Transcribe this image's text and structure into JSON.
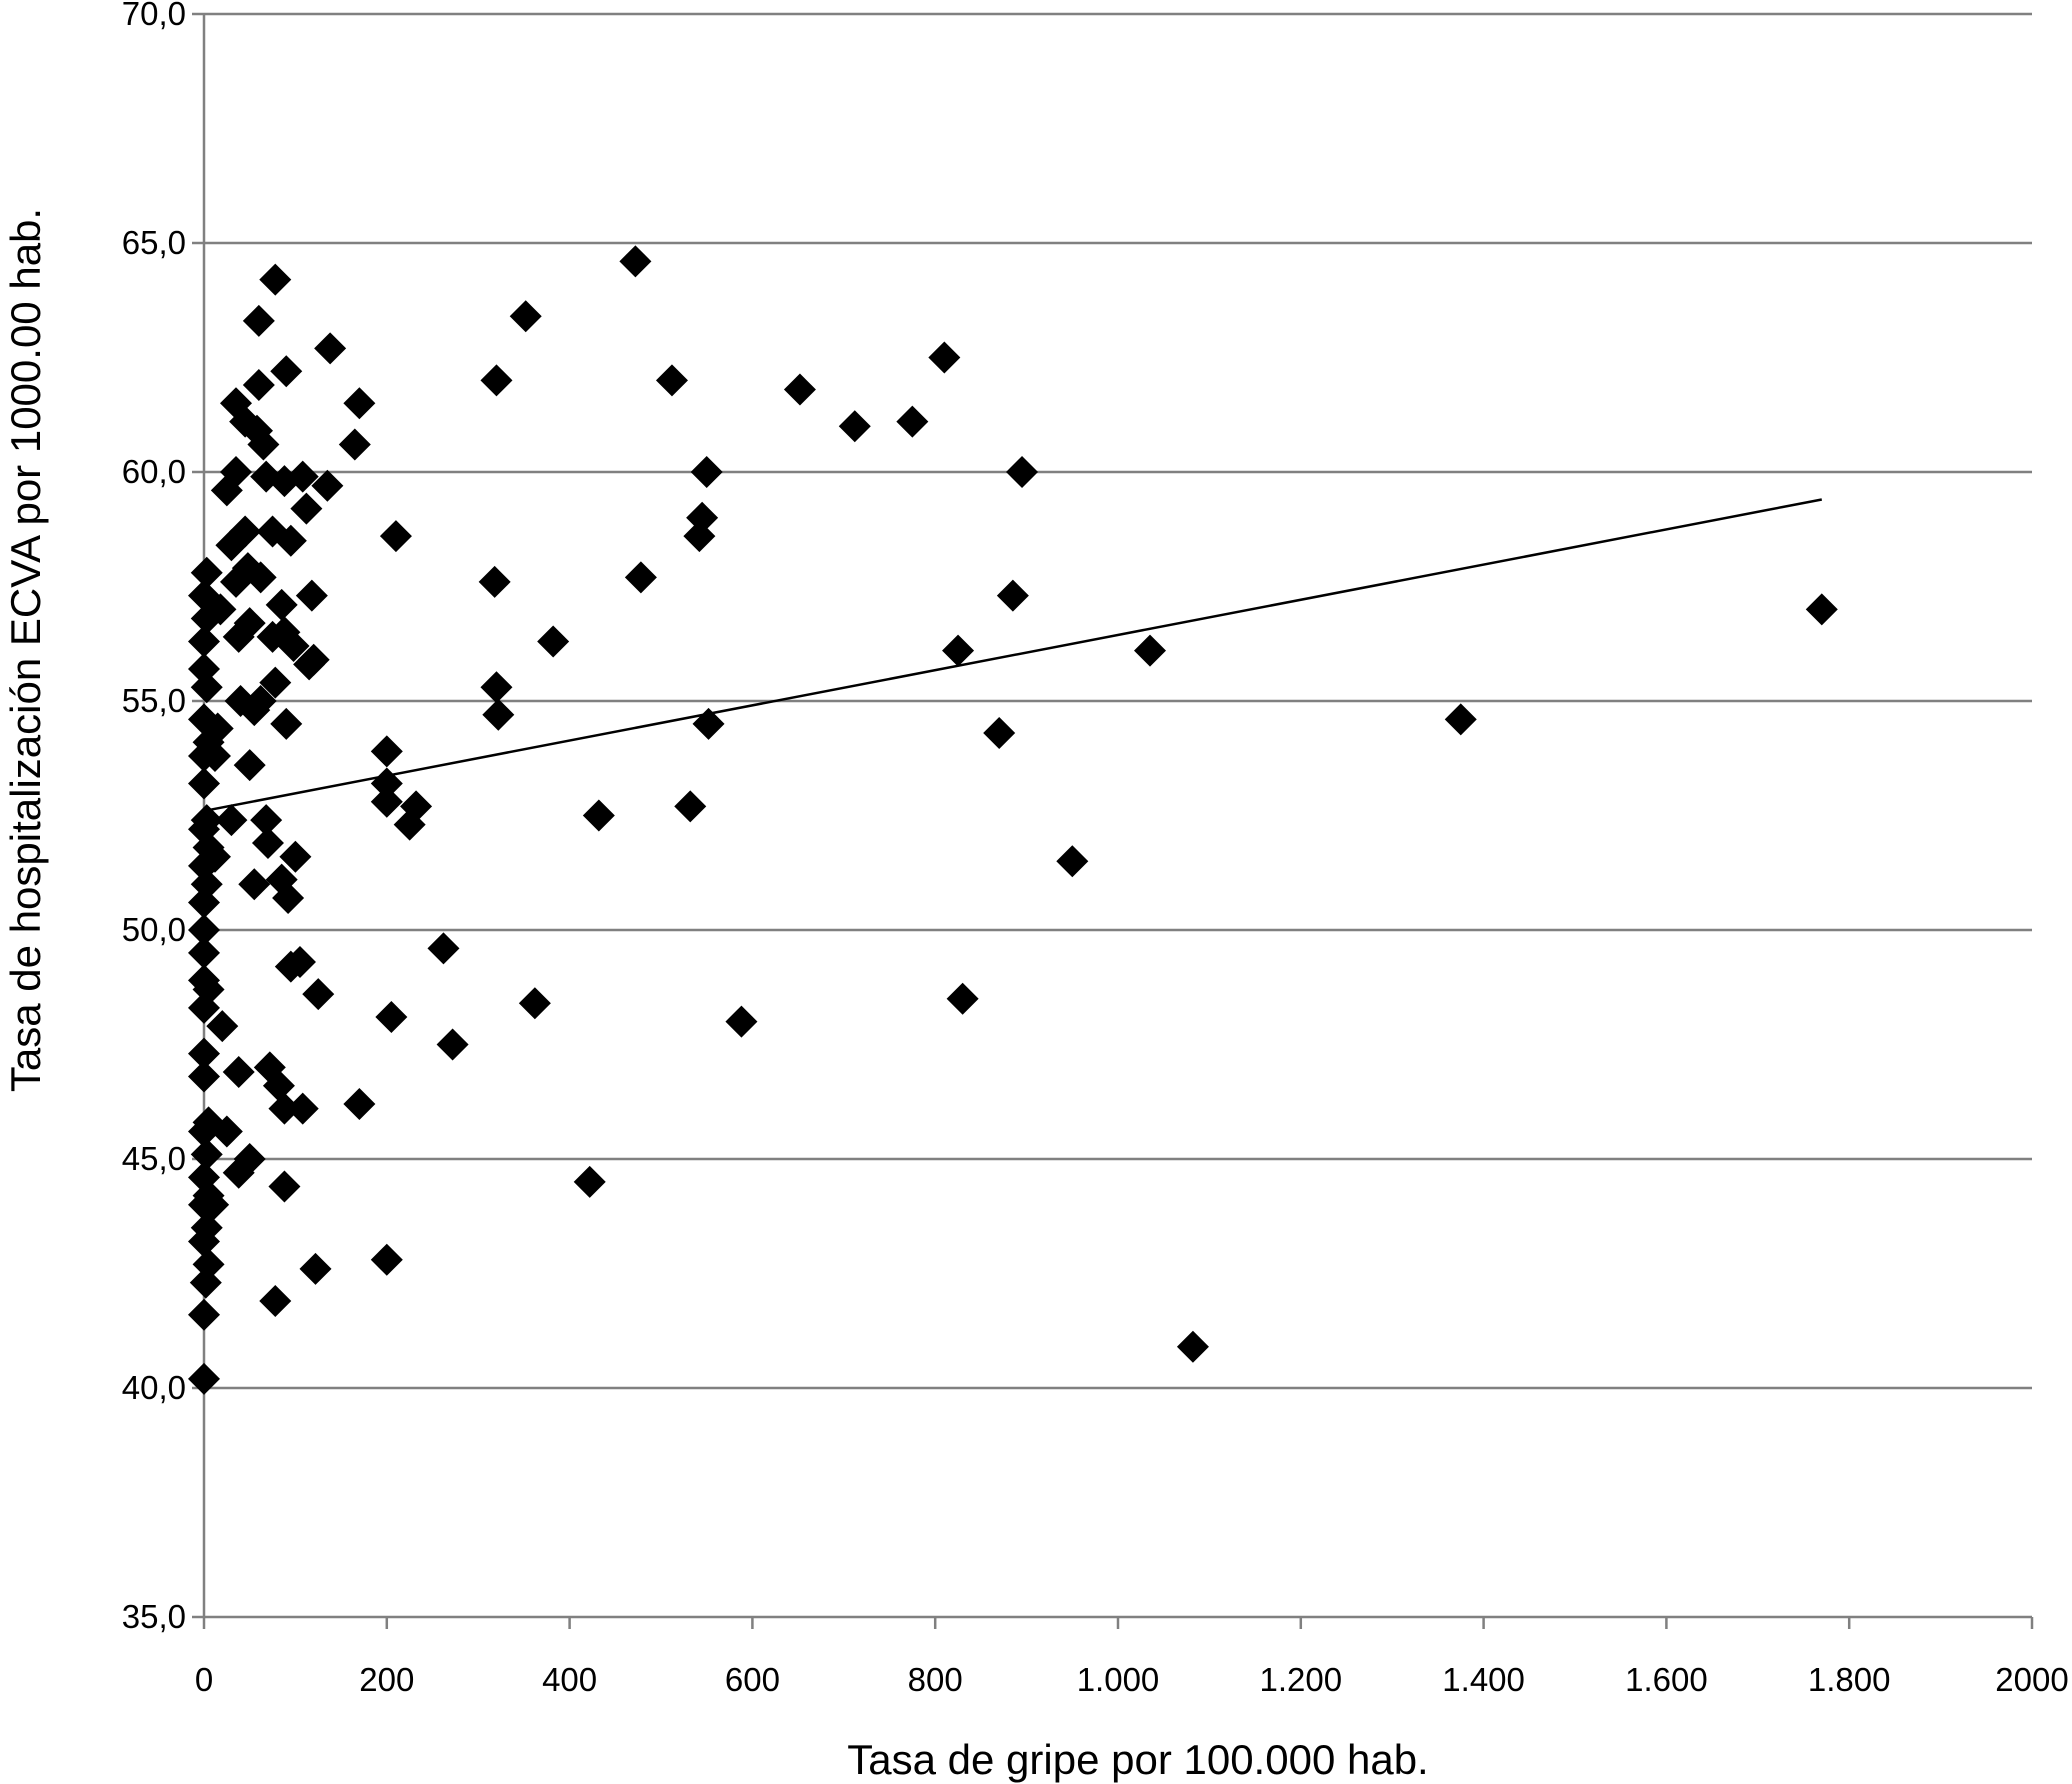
{
  "chart_data": {
    "type": "scatter",
    "title": "",
    "xlabel": "Tasa de gripe por 100.000 hab.",
    "ylabel": "Tasa de hospitalización ECVA por 1000.00 hab.",
    "xlim": [
      0,
      2000
    ],
    "ylim": [
      35,
      70
    ],
    "x_ticks": [
      0,
      200,
      400,
      600,
      800,
      1000,
      1200,
      1400,
      1600,
      1800,
      2000
    ],
    "x_tick_labels": [
      "0",
      "200",
      "400",
      "600",
      "800",
      "1.000",
      "1.200",
      "1.400",
      "1.600",
      "1.800",
      "2000"
    ],
    "y_ticks": [
      35,
      40,
      45,
      50,
      55,
      60,
      65,
      70
    ],
    "y_tick_labels": [
      "35,0",
      "40,0",
      "45,0",
      "50,0",
      "55,0",
      "60,0",
      "65,0",
      "70,0"
    ],
    "grid": "horizontal",
    "marker": "diamond",
    "marker_color": "#000000",
    "trendline": {
      "x": [
        0,
        1770
      ],
      "y": [
        52.6,
        59.4
      ]
    },
    "points": [
      {
        "x": 0,
        "y": 40.2
      },
      {
        "x": 0,
        "y": 41.6
      },
      {
        "x": 2,
        "y": 42.3
      },
      {
        "x": 5,
        "y": 42.7
      },
      {
        "x": 0,
        "y": 43.2
      },
      {
        "x": 3,
        "y": 43.5
      },
      {
        "x": 0,
        "y": 44.0
      },
      {
        "x": 5,
        "y": 44.2
      },
      {
        "x": 0,
        "y": 44.6
      },
      {
        "x": 3,
        "y": 45.1
      },
      {
        "x": 0,
        "y": 45.6
      },
      {
        "x": 5,
        "y": 45.8
      },
      {
        "x": 0,
        "y": 46.8
      },
      {
        "x": 0,
        "y": 47.3
      },
      {
        "x": 0,
        "y": 48.3
      },
      {
        "x": 5,
        "y": 48.7
      },
      {
        "x": 0,
        "y": 48.9
      },
      {
        "x": 0,
        "y": 49.5
      },
      {
        "x": 0,
        "y": 50.0
      },
      {
        "x": 0,
        "y": 50.6
      },
      {
        "x": 3,
        "y": 51.0
      },
      {
        "x": 0,
        "y": 51.4
      },
      {
        "x": 5,
        "y": 51.8
      },
      {
        "x": 0,
        "y": 52.2
      },
      {
        "x": 3,
        "y": 52.4
      },
      {
        "x": 0,
        "y": 53.2
      },
      {
        "x": 0,
        "y": 53.8
      },
      {
        "x": 5,
        "y": 54.1
      },
      {
        "x": 0,
        "y": 54.6
      },
      {
        "x": 3,
        "y": 55.3
      },
      {
        "x": 0,
        "y": 55.7
      },
      {
        "x": 0,
        "y": 56.3
      },
      {
        "x": 3,
        "y": 56.8
      },
      {
        "x": 0,
        "y": 57.3
      },
      {
        "x": 3,
        "y": 57.8
      },
      {
        "x": 10,
        "y": 44.0
      },
      {
        "x": 12,
        "y": 51.6
      },
      {
        "x": 12,
        "y": 53.8
      },
      {
        "x": 15,
        "y": 54.4
      },
      {
        "x": 18,
        "y": 57.0
      },
      {
        "x": 20,
        "y": 47.9
      },
      {
        "x": 25,
        "y": 45.6
      },
      {
        "x": 30,
        "y": 52.4
      },
      {
        "x": 25,
        "y": 59.6
      },
      {
        "x": 30,
        "y": 58.4
      },
      {
        "x": 35,
        "y": 61.5
      },
      {
        "x": 35,
        "y": 60.0
      },
      {
        "x": 35,
        "y": 57.6
      },
      {
        "x": 38,
        "y": 56.4
      },
      {
        "x": 40,
        "y": 55.0
      },
      {
        "x": 38,
        "y": 44.7
      },
      {
        "x": 38,
        "y": 46.9
      },
      {
        "x": 45,
        "y": 61.1
      },
      {
        "x": 45,
        "y": 58.7
      },
      {
        "x": 48,
        "y": 57.9
      },
      {
        "x": 50,
        "y": 56.7
      },
      {
        "x": 50,
        "y": 53.6
      },
      {
        "x": 50,
        "y": 45.0
      },
      {
        "x": 55,
        "y": 54.8
      },
      {
        "x": 55,
        "y": 51.0
      },
      {
        "x": 58,
        "y": 60.9
      },
      {
        "x": 60,
        "y": 63.3
      },
      {
        "x": 60,
        "y": 61.9
      },
      {
        "x": 62,
        "y": 57.7
      },
      {
        "x": 62,
        "y": 55.0
      },
      {
        "x": 65,
        "y": 60.6
      },
      {
        "x": 68,
        "y": 59.9
      },
      {
        "x": 68,
        "y": 52.4
      },
      {
        "x": 70,
        "y": 51.9
      },
      {
        "x": 72,
        "y": 47.0
      },
      {
        "x": 75,
        "y": 58.7
      },
      {
        "x": 75,
        "y": 56.4
      },
      {
        "x": 78,
        "y": 64.2
      },
      {
        "x": 78,
        "y": 55.4
      },
      {
        "x": 78,
        "y": 41.9
      },
      {
        "x": 82,
        "y": 46.6
      },
      {
        "x": 85,
        "y": 57.1
      },
      {
        "x": 85,
        "y": 51.1
      },
      {
        "x": 88,
        "y": 59.8
      },
      {
        "x": 88,
        "y": 56.5
      },
      {
        "x": 88,
        "y": 46.1
      },
      {
        "x": 88,
        "y": 44.4
      },
      {
        "x": 90,
        "y": 62.2
      },
      {
        "x": 90,
        "y": 54.5
      },
      {
        "x": 92,
        "y": 50.7
      },
      {
        "x": 95,
        "y": 49.2
      },
      {
        "x": 95,
        "y": 58.5
      },
      {
        "x": 98,
        "y": 56.2
      },
      {
        "x": 100,
        "y": 51.6
      },
      {
        "x": 105,
        "y": 49.3
      },
      {
        "x": 108,
        "y": 59.9
      },
      {
        "x": 108,
        "y": 46.1
      },
      {
        "x": 112,
        "y": 59.2
      },
      {
        "x": 115,
        "y": 55.8
      },
      {
        "x": 118,
        "y": 57.3
      },
      {
        "x": 120,
        "y": 55.9
      },
      {
        "x": 122,
        "y": 42.6
      },
      {
        "x": 125,
        "y": 48.6
      },
      {
        "x": 135,
        "y": 59.7
      },
      {
        "x": 138,
        "y": 62.7
      },
      {
        "x": 165,
        "y": 60.6
      },
      {
        "x": 170,
        "y": 61.5
      },
      {
        "x": 170,
        "y": 46.2
      },
      {
        "x": 200,
        "y": 53.9
      },
      {
        "x": 200,
        "y": 53.2
      },
      {
        "x": 200,
        "y": 52.8
      },
      {
        "x": 200,
        "y": 42.8
      },
      {
        "x": 205,
        "y": 48.1
      },
      {
        "x": 210,
        "y": 58.6
      },
      {
        "x": 225,
        "y": 52.3
      },
      {
        "x": 232,
        "y": 52.7
      },
      {
        "x": 262,
        "y": 49.6
      },
      {
        "x": 272,
        "y": 47.5
      },
      {
        "x": 318,
        "y": 57.6
      },
      {
        "x": 320,
        "y": 62.0
      },
      {
        "x": 320,
        "y": 55.3
      },
      {
        "x": 322,
        "y": 54.7
      },
      {
        "x": 352,
        "y": 63.4
      },
      {
        "x": 362,
        "y": 48.4
      },
      {
        "x": 382,
        "y": 56.3
      },
      {
        "x": 422,
        "y": 44.5
      },
      {
        "x": 432,
        "y": 52.5
      },
      {
        "x": 472,
        "y": 64.6
      },
      {
        "x": 478,
        "y": 57.7
      },
      {
        "x": 512,
        "y": 62.0
      },
      {
        "x": 532,
        "y": 52.7
      },
      {
        "x": 542,
        "y": 58.6
      },
      {
        "x": 545,
        "y": 59.0
      },
      {
        "x": 550,
        "y": 60.0
      },
      {
        "x": 552,
        "y": 54.5
      },
      {
        "x": 588,
        "y": 48.0
      },
      {
        "x": 652,
        "y": 61.8
      },
      {
        "x": 712,
        "y": 61.0
      },
      {
        "x": 775,
        "y": 61.1
      },
      {
        "x": 810,
        "y": 62.5
      },
      {
        "x": 825,
        "y": 56.1
      },
      {
        "x": 830,
        "y": 48.5
      },
      {
        "x": 870,
        "y": 54.3
      },
      {
        "x": 885,
        "y": 57.3
      },
      {
        "x": 895,
        "y": 60.0
      },
      {
        "x": 950,
        "y": 51.5
      },
      {
        "x": 1035,
        "y": 56.1
      },
      {
        "x": 1082,
        "y": 40.9
      },
      {
        "x": 1375,
        "y": 54.6
      },
      {
        "x": 1770,
        "y": 57.0
      }
    ]
  }
}
